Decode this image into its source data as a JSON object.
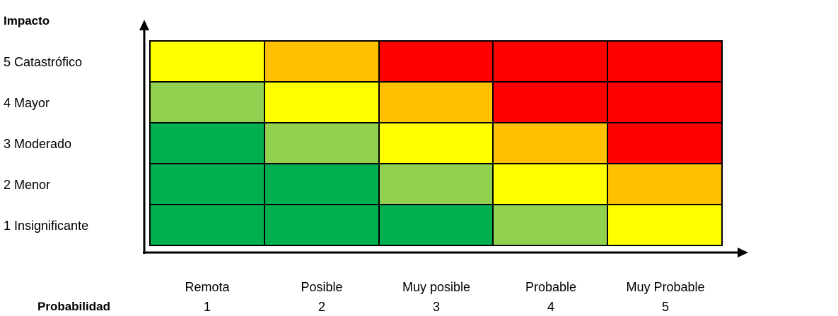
{
  "y_axis": {
    "title": "Impacto",
    "levels": [
      "5 Catastrófico",
      "4 Mayor",
      "3 Moderado",
      "2 Menor",
      "1 Insignificante"
    ]
  },
  "x_axis": {
    "title": "Probabilidad",
    "levels": [
      {
        "label": "Remota",
        "number": "1"
      },
      {
        "label": "Posible",
        "number": "2"
      },
      {
        "label": "Muy posible",
        "number": "3"
      },
      {
        "label": "Probable",
        "number": "4"
      },
      {
        "label": "Muy Probable",
        "number": "5"
      }
    ]
  },
  "colors": {
    "dark_green": "#00B050",
    "light_green": "#92D050",
    "yellow": "#FFFF00",
    "orange": "#FFC000",
    "red": "#FF0000"
  },
  "matrix": [
    [
      "yellow",
      "orange",
      "red",
      "red",
      "red"
    ],
    [
      "light_green",
      "yellow",
      "orange",
      "red",
      "red"
    ],
    [
      "dark_green",
      "light_green",
      "yellow",
      "orange",
      "red"
    ],
    [
      "dark_green",
      "dark_green",
      "light_green",
      "yellow",
      "orange"
    ],
    [
      "dark_green",
      "dark_green",
      "dark_green",
      "light_green",
      "yellow"
    ]
  ]
}
